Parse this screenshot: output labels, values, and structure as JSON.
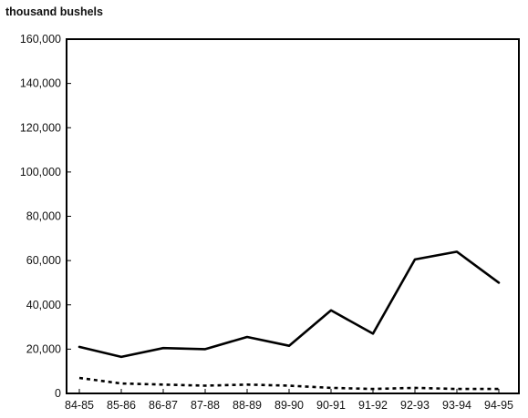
{
  "chart_data": {
    "type": "line",
    "title": "",
    "xlabel": "",
    "ylabel": "thousand bushels",
    "categories": [
      "84-85",
      "85-86",
      "86-87",
      "87-88",
      "88-89",
      "89-90",
      "90-91",
      "91-92",
      "92-93",
      "93-94",
      "94-95"
    ],
    "ylim": [
      0,
      160000
    ],
    "yticks": [
      0,
      20000,
      40000,
      60000,
      80000,
      100000,
      120000,
      140000,
      160000
    ],
    "ytick_labels": [
      "0",
      "20,000",
      "40,000",
      "60,000",
      "80,000",
      "100,000",
      "120,000",
      "140,000",
      "160,000"
    ],
    "grid": false,
    "legend": "none",
    "series": [
      {
        "style": "solid",
        "color": "#000000",
        "values": [
          21000,
          16500,
          20500,
          20000,
          25500,
          21500,
          37500,
          27000,
          60500,
          64000,
          50000
        ]
      },
      {
        "style": "dashed",
        "color": "#000000",
        "values": [
          7000,
          4500,
          4000,
          3500,
          4000,
          3500,
          2500,
          2000,
          2500,
          2000,
          2000
        ]
      }
    ]
  }
}
